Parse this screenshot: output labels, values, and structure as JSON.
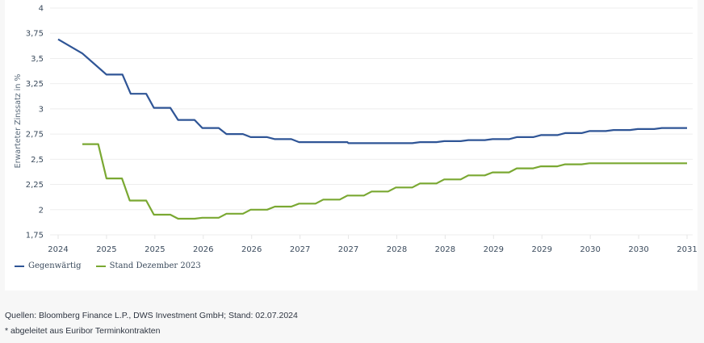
{
  "chart_data": {
    "type": "line",
    "title": "",
    "xlabel": "",
    "ylabel": "Erwarteter Zinssatz in %",
    "ylim": [
      1.75,
      4
    ],
    "yticks": [
      "1,75",
      "2",
      "2,25",
      "2,5",
      "2,75",
      "3",
      "3,25",
      "3,5",
      "3,75",
      "4"
    ],
    "ytick_values": [
      1.75,
      2,
      2.25,
      2.5,
      2.75,
      3,
      3.25,
      3.5,
      3.75,
      4
    ],
    "xticks": [
      "2024",
      "2025",
      "2025",
      "2026",
      "2026",
      "2027",
      "2027",
      "2028",
      "2028",
      "2029",
      "2029",
      "2030",
      "2030",
      "2031"
    ],
    "x_range": [
      0,
      13
    ],
    "grid": true,
    "legend_position": "bottom-left",
    "series": [
      {
        "name": "Gegenwärtig",
        "color": "#2f5596",
        "points": [
          [
            0.0,
            3.69
          ],
          [
            0.5,
            3.55
          ],
          [
            1.0,
            3.34
          ],
          [
            1.33,
            3.34
          ],
          [
            1.5,
            3.15
          ],
          [
            1.82,
            3.15
          ],
          [
            1.98,
            3.01
          ],
          [
            2.32,
            3.01
          ],
          [
            2.48,
            2.89
          ],
          [
            2.82,
            2.89
          ],
          [
            2.98,
            2.81
          ],
          [
            3.32,
            2.81
          ],
          [
            3.48,
            2.75
          ],
          [
            3.82,
            2.75
          ],
          [
            3.98,
            2.72
          ],
          [
            4.32,
            2.72
          ],
          [
            4.48,
            2.7
          ],
          [
            4.82,
            2.7
          ],
          [
            4.98,
            2.67
          ],
          [
            5.98,
            2.67
          ],
          [
            6.0,
            2.66
          ],
          [
            6.82,
            2.66
          ],
          [
            6.98,
            2.66
          ],
          [
            7.32,
            2.66
          ],
          [
            7.48,
            2.67
          ],
          [
            7.82,
            2.67
          ],
          [
            7.98,
            2.68
          ],
          [
            8.32,
            2.68
          ],
          [
            8.48,
            2.69
          ],
          [
            8.82,
            2.69
          ],
          [
            8.98,
            2.7
          ],
          [
            9.32,
            2.7
          ],
          [
            9.48,
            2.72
          ],
          [
            9.82,
            2.72
          ],
          [
            9.98,
            2.74
          ],
          [
            10.32,
            2.74
          ],
          [
            10.48,
            2.76
          ],
          [
            10.82,
            2.76
          ],
          [
            10.98,
            2.78
          ],
          [
            11.32,
            2.78
          ],
          [
            11.48,
            2.79
          ],
          [
            11.82,
            2.79
          ],
          [
            11.98,
            2.8
          ],
          [
            12.32,
            2.8
          ],
          [
            12.48,
            2.81
          ],
          [
            13.0,
            2.81
          ]
        ]
      },
      {
        "name": "Stand Dezember 2023",
        "color": "#7aa832",
        "points": [
          [
            0.5,
            2.65
          ],
          [
            0.83,
            2.65
          ],
          [
            1.0,
            2.31
          ],
          [
            1.32,
            2.31
          ],
          [
            1.48,
            2.09
          ],
          [
            1.82,
            2.09
          ],
          [
            1.98,
            1.95
          ],
          [
            2.32,
            1.95
          ],
          [
            2.48,
            1.91
          ],
          [
            2.82,
            1.91
          ],
          [
            2.98,
            1.92
          ],
          [
            3.32,
            1.92
          ],
          [
            3.48,
            1.96
          ],
          [
            3.82,
            1.96
          ],
          [
            3.98,
            2.0
          ],
          [
            4.32,
            2.0
          ],
          [
            4.48,
            2.03
          ],
          [
            4.82,
            2.03
          ],
          [
            4.98,
            2.06
          ],
          [
            5.32,
            2.06
          ],
          [
            5.48,
            2.1
          ],
          [
            5.82,
            2.1
          ],
          [
            5.98,
            2.14
          ],
          [
            6.32,
            2.14
          ],
          [
            6.48,
            2.18
          ],
          [
            6.82,
            2.18
          ],
          [
            6.98,
            2.22
          ],
          [
            7.32,
            2.22
          ],
          [
            7.48,
            2.26
          ],
          [
            7.82,
            2.26
          ],
          [
            7.98,
            2.3
          ],
          [
            8.32,
            2.3
          ],
          [
            8.48,
            2.34
          ],
          [
            8.82,
            2.34
          ],
          [
            8.98,
            2.37
          ],
          [
            9.32,
            2.37
          ],
          [
            9.48,
            2.41
          ],
          [
            9.82,
            2.41
          ],
          [
            9.98,
            2.43
          ],
          [
            10.32,
            2.43
          ],
          [
            10.48,
            2.45
          ],
          [
            10.82,
            2.45
          ],
          [
            10.98,
            2.46
          ],
          [
            13.0,
            2.46
          ]
        ]
      }
    ]
  },
  "legend": {
    "items": [
      {
        "label": "Gegenwärtig",
        "color": "#2f5596"
      },
      {
        "label": "Stand Dezember 2023",
        "color": "#7aa832"
      }
    ]
  },
  "footer": {
    "source": "Quellen: Bloomberg Finance L.P., DWS Investment GmbH; Stand: 02.07.2024",
    "note": "* abgeleitet aus Euribor Terminkontrakten"
  }
}
